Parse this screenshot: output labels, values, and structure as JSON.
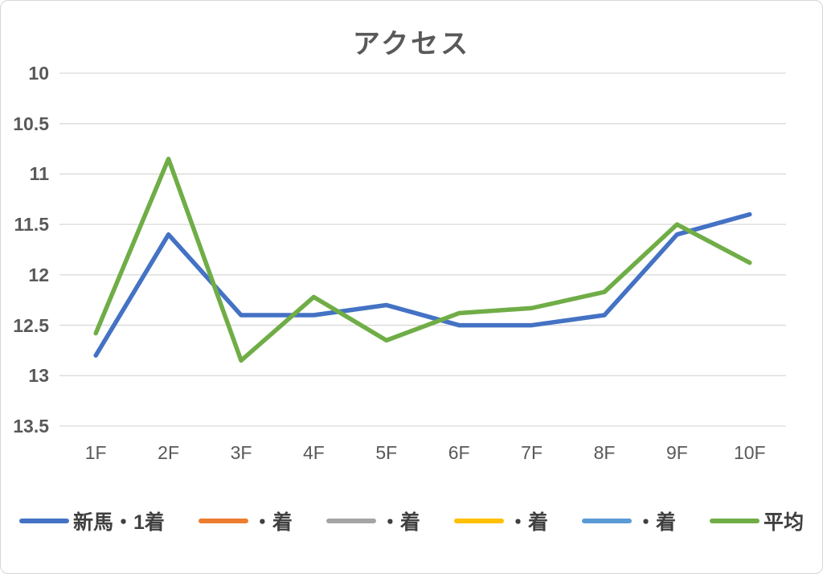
{
  "window": {
    "background": "#ffffff",
    "border_color": "#d6d6d6"
  },
  "colors": {
    "title_text": "#595959",
    "axis_label_text": "#595959",
    "legend_text": "#404040",
    "gridline": "#d9d9d9"
  },
  "chart_data": {
    "type": "line",
    "title": "アクセス",
    "categories": [
      "1F",
      "2F",
      "3F",
      "4F",
      "5F",
      "6F",
      "7F",
      "8F",
      "9F",
      "10F"
    ],
    "series": [
      {
        "name": "新馬・1着",
        "color": "#4472C4",
        "values": [
          12.8,
          11.6,
          12.4,
          12.4,
          12.3,
          12.5,
          12.5,
          12.4,
          11.6,
          11.4
        ]
      },
      {
        "name": "・着",
        "color": "#ED7D31",
        "values": []
      },
      {
        "name": "・着",
        "color": "#A5A5A5",
        "values": []
      },
      {
        "name": "・着",
        "color": "#FFC000",
        "values": []
      },
      {
        "name": "・着",
        "color": "#5B9BD5",
        "values": []
      },
      {
        "name": "平均",
        "color": "#70AD47",
        "values": [
          12.58,
          10.85,
          12.85,
          12.22,
          12.65,
          12.38,
          12.33,
          12.17,
          11.5,
          11.88
        ]
      }
    ],
    "y_axis": {
      "min": 10,
      "max": 13.5,
      "inverted": true,
      "tick_labels": [
        "10",
        "10.5",
        "11",
        "11.5",
        "12",
        "12.5",
        "13",
        "13.5"
      ],
      "tick_values": [
        10,
        10.5,
        11,
        11.5,
        12,
        12.5,
        13,
        13.5
      ]
    },
    "grid": "horizontal",
    "legend_position": "bottom"
  }
}
